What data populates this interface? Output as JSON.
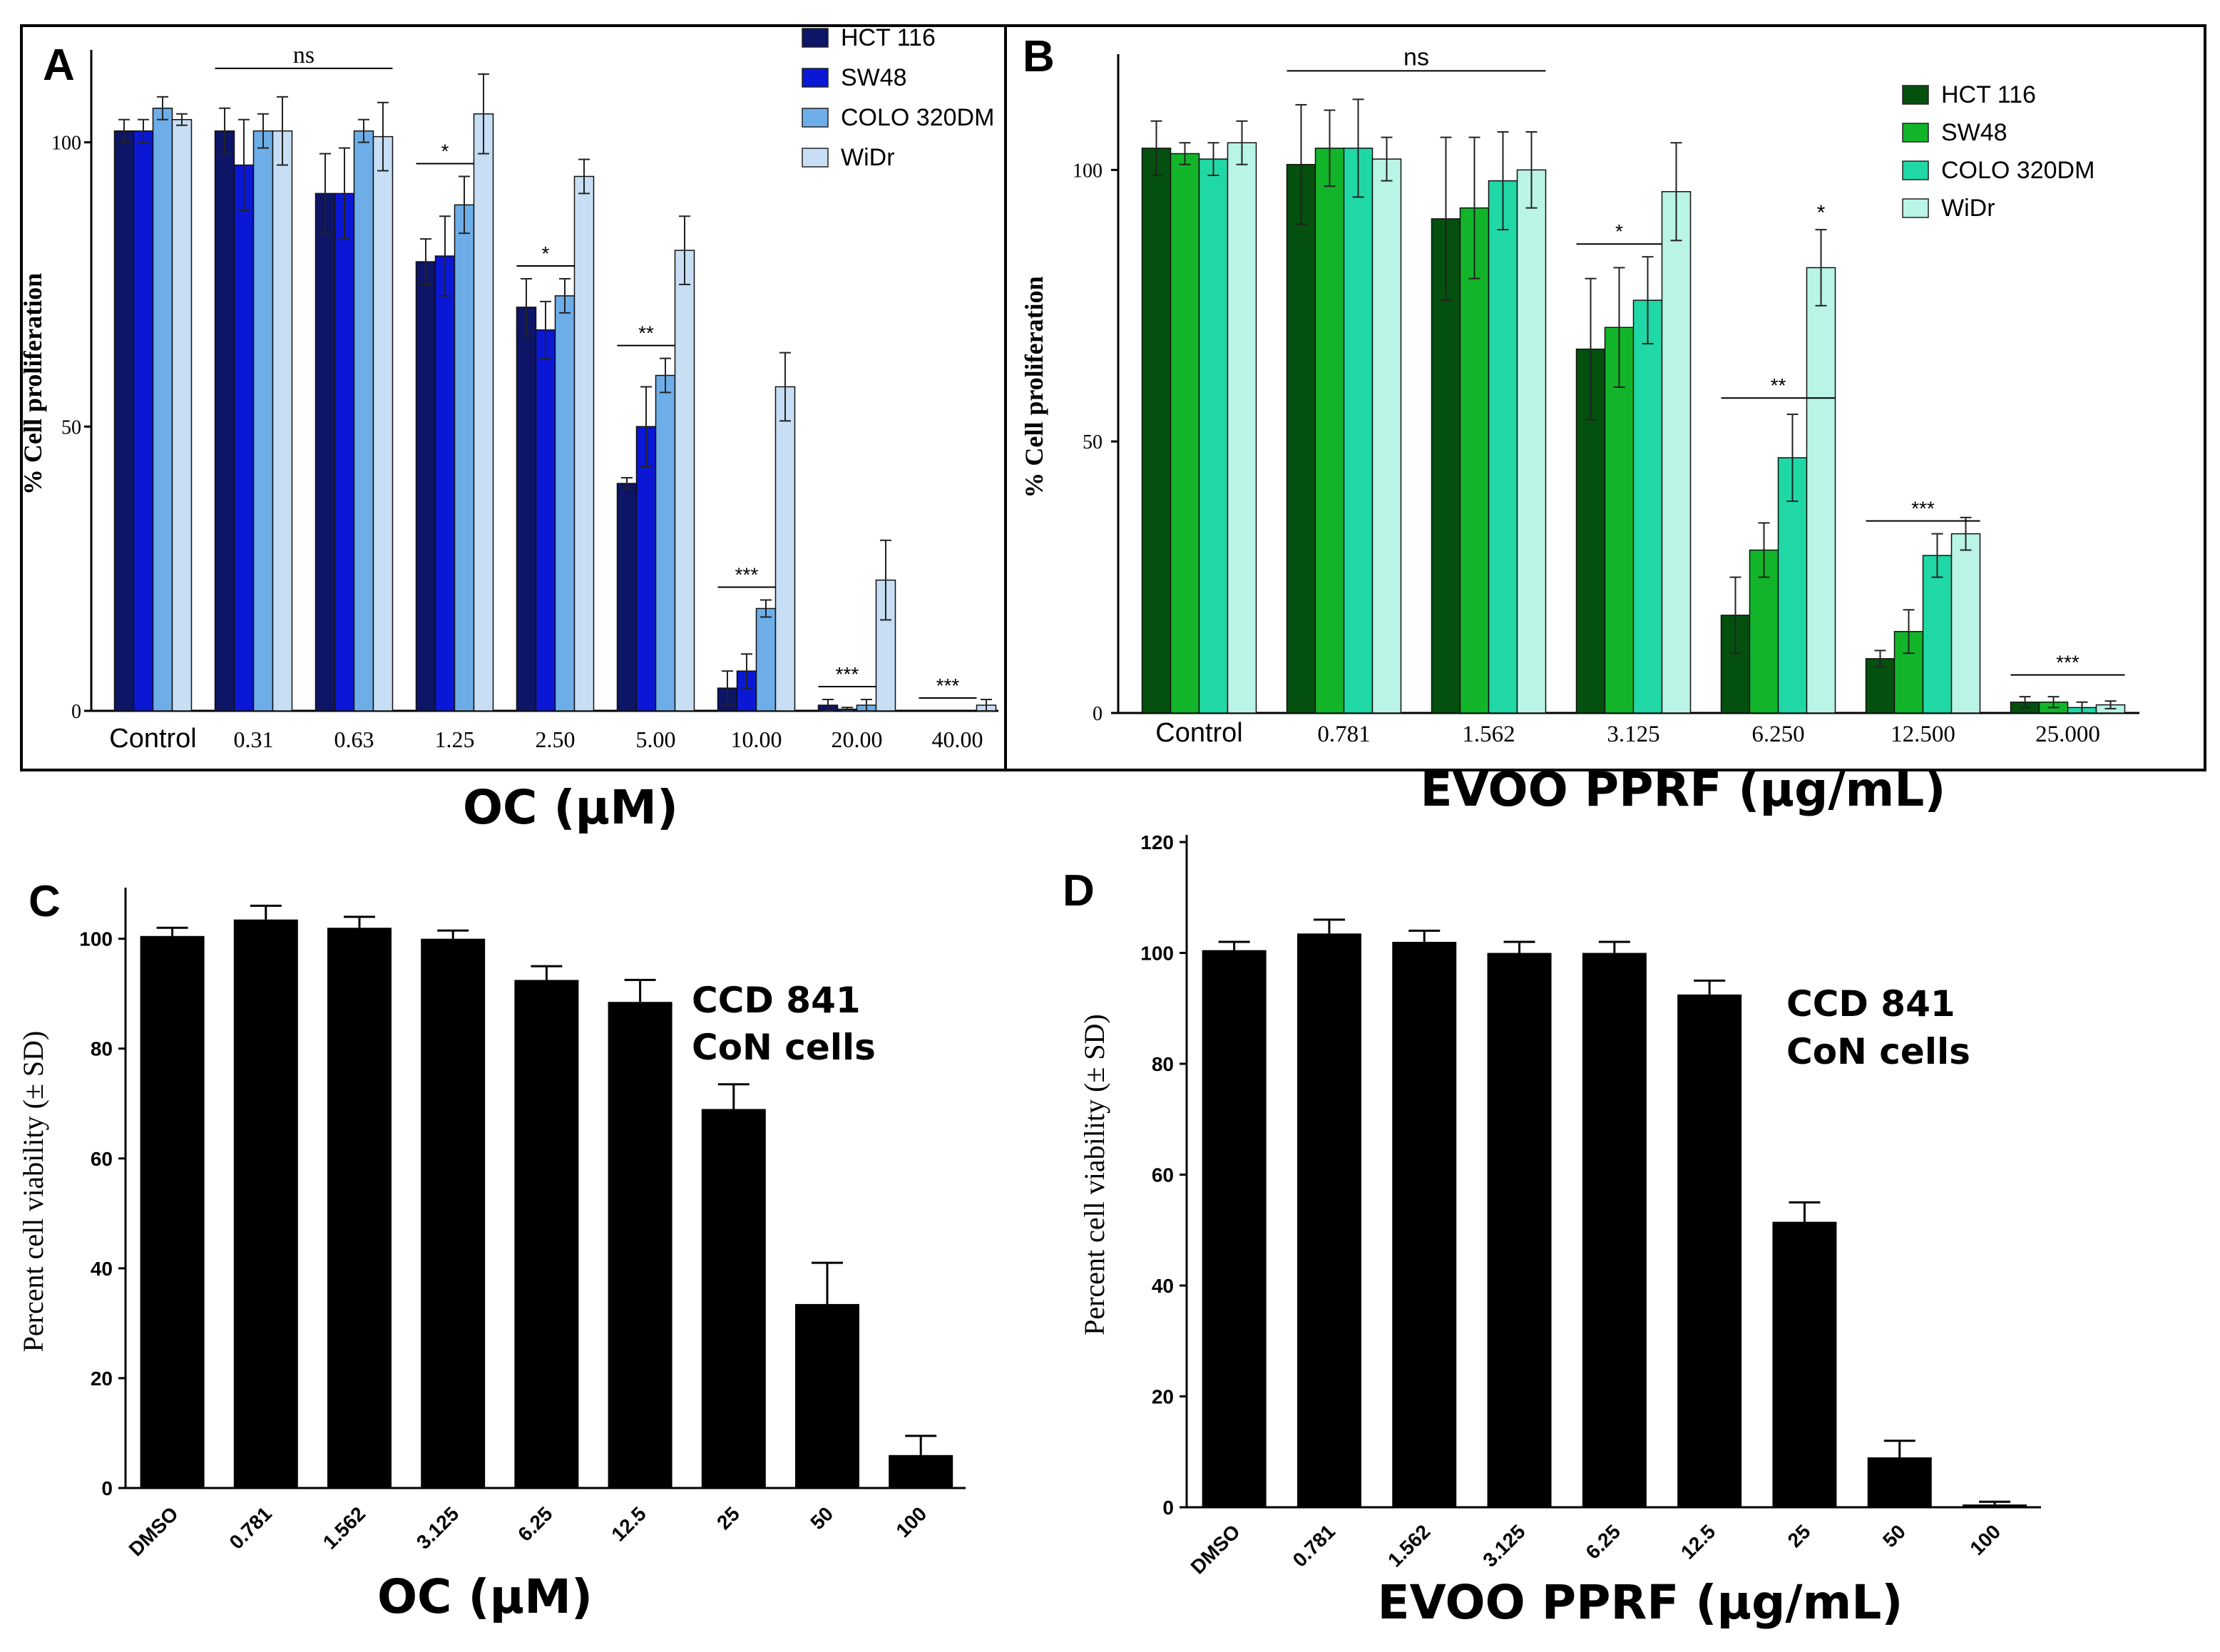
{
  "figure": {
    "colors": {
      "blue": [
        "#0d1566",
        "#0a18d6",
        "#6eaee8",
        "#c7def4"
      ],
      "green": [
        "#04500f",
        "#12b52a",
        "#1fd8a6",
        "#b9f4e6"
      ],
      "black": "#000000"
    }
  },
  "chart_data": [
    {
      "id": "A",
      "panel_label": "A",
      "type": "bar",
      "title": "",
      "xlabel": "OC (µM)",
      "ylabel": "% Cell proliferation",
      "ylim": [
        0,
        115
      ],
      "yticks": [
        "0",
        "50",
        "100"
      ],
      "grid": false,
      "legend_position": "top-right",
      "categories": [
        "Control",
        "0.31",
        "0.63",
        "1.25",
        "2.50",
        "5.00",
        "10.00",
        "20.00",
        "40.00"
      ],
      "series": [
        {
          "name": "HCT 116",
          "values": [
            102,
            102,
            91,
            79,
            71,
            40,
            4,
            1,
            0
          ],
          "errors": [
            2,
            4,
            7,
            4,
            5,
            1,
            3,
            1,
            0
          ]
        },
        {
          "name": "SW48",
          "values": [
            102,
            96,
            91,
            80,
            67,
            50,
            7,
            0.3,
            0
          ],
          "errors": [
            2,
            8,
            8,
            7,
            5,
            7,
            3,
            0.3,
            0
          ]
        },
        {
          "name": "COLO 320DM",
          "values": [
            106,
            102,
            102,
            89,
            73,
            59,
            18,
            1,
            0
          ],
          "errors": [
            2,
            3,
            2,
            5,
            3,
            3,
            1.5,
            1,
            0
          ]
        },
        {
          "name": "WiDr",
          "values": [
            104,
            102,
            101,
            105,
            94,
            81,
            57,
            23,
            1
          ],
          "errors": [
            1,
            6,
            6,
            7,
            3,
            6,
            6,
            7,
            1
          ]
        }
      ],
      "annotations": [
        {
          "text": "ns",
          "group_from": 1,
          "group_to": 2
        },
        {
          "text": "*",
          "group_from": 3,
          "group_to": 3
        },
        {
          "text": "*",
          "group_from": 4,
          "group_to": 4
        },
        {
          "text": "**",
          "group_from": 5,
          "group_to": 5
        },
        {
          "text": "***",
          "group_from": 6,
          "group_to": 6
        },
        {
          "text": "***",
          "group_from": 7,
          "group_to": 7
        },
        {
          "text": "***",
          "group_from": 8,
          "group_to": 8
        }
      ]
    },
    {
      "id": "B",
      "panel_label": "B",
      "type": "bar",
      "title": "",
      "xlabel": "EVOO PPRF (µg/mL)",
      "ylabel": "% Cell proliferation",
      "ylim": [
        0,
        120
      ],
      "yticks": [
        "0",
        "50",
        "100"
      ],
      "grid": false,
      "legend_position": "top-right",
      "categories": [
        "Control",
        "0.781",
        "1.562",
        "3.125",
        "6.250",
        "12.500",
        "25.000"
      ],
      "series": [
        {
          "name": "HCT 116",
          "values": [
            104,
            101,
            91,
            67,
            18,
            10,
            2
          ],
          "errors": [
            5,
            11,
            15,
            13,
            7,
            1.5,
            1
          ]
        },
        {
          "name": "SW48",
          "values": [
            103,
            104,
            93,
            71,
            30,
            15,
            2
          ],
          "errors": [
            2,
            7,
            13,
            11,
            5,
            4,
            1
          ]
        },
        {
          "name": "COLO 320DM",
          "values": [
            102,
            104,
            98,
            76,
            47,
            29,
            1
          ],
          "errors": [
            3,
            9,
            9,
            8,
            8,
            4,
            1
          ]
        },
        {
          "name": "WiDr",
          "values": [
            105,
            102,
            100,
            96,
            82,
            33,
            1.5
          ],
          "errors": [
            4,
            4,
            7,
            9,
            7,
            3,
            0.7
          ]
        }
      ],
      "annotations": [
        {
          "text": "ns",
          "group_from": 1,
          "group_to": 2
        },
        {
          "text": "*",
          "group_from": 3,
          "group_to": 3
        },
        {
          "text": "*",
          "group_from": 4,
          "group_to": 4,
          "single_series": 3
        },
        {
          "text": "**",
          "group_from": 4,
          "group_to": 4
        },
        {
          "text": "***",
          "group_from": 5,
          "group_to": 5
        },
        {
          "text": "***",
          "group_from": 6,
          "group_to": 6
        }
      ]
    },
    {
      "id": "C",
      "panel_label": "C",
      "type": "bar",
      "title": "",
      "xlabel": "OC (µM)",
      "ylabel": "Percent cell viability (± SD)",
      "ylim": [
        0,
        108
      ],
      "yticks": [
        "0",
        "20",
        "40",
        "60",
        "80",
        "100"
      ],
      "grid": false,
      "categories": [
        "DMSO",
        "0.781",
        "1.562",
        "3.125",
        "6.25",
        "12.5",
        "25",
        "50",
        "100"
      ],
      "values": [
        100.5,
        103.5,
        102,
        100,
        92.5,
        88.5,
        69,
        33.5,
        6
      ],
      "errors": [
        1.5,
        2.5,
        2,
        1.5,
        2.5,
        4,
        4.5,
        7.5,
        3.5
      ],
      "annotation": [
        "CCD 841",
        "CoN cells"
      ]
    },
    {
      "id": "D",
      "panel_label": "D",
      "type": "bar",
      "title": "",
      "xlabel": "EVOO PPRF (µg/mL)",
      "ylabel": "Percent cell viability (± SD)",
      "ylim": [
        0,
        120
      ],
      "yticks": [
        "0",
        "20",
        "40",
        "60",
        "80",
        "100",
        "120"
      ],
      "grid": false,
      "categories": [
        "DMSO",
        "0.781",
        "1.562",
        "3.125",
        "6.25",
        "12.5",
        "25",
        "50",
        "100"
      ],
      "values": [
        100.5,
        103.5,
        102,
        100,
        100,
        92.5,
        51.5,
        9,
        0.5
      ],
      "errors": [
        1.5,
        2.5,
        2,
        2,
        2,
        2.5,
        3.5,
        3,
        0.5
      ],
      "annotation": [
        "CCD 841",
        "CoN cells"
      ]
    }
  ]
}
